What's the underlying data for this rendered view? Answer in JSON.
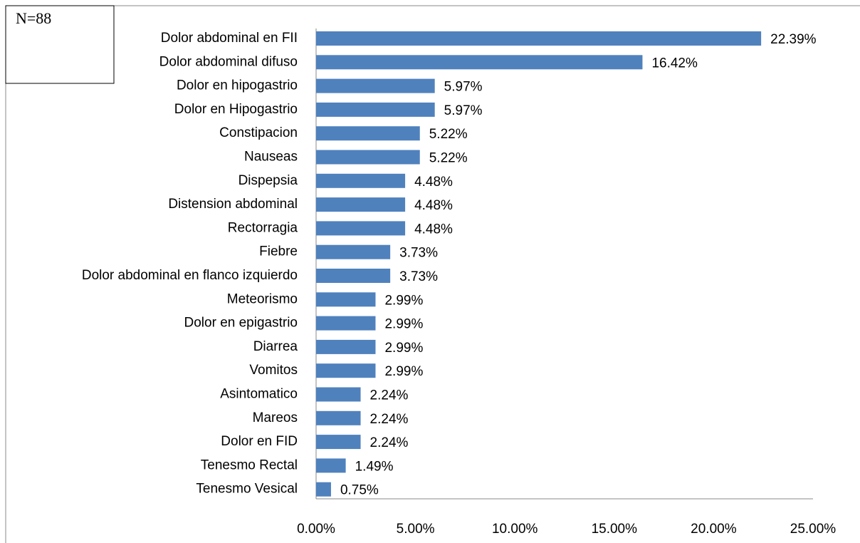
{
  "chart_data": {
    "type": "bar",
    "orientation": "horizontal",
    "annotation": "N=88",
    "categories": [
      "Dolor abdominal en FII",
      "Dolor abdominal difuso",
      "Dolor en hipogastrio",
      "Dolor en Hipogastrio",
      "Constipacion",
      "Nauseas",
      "Dispepsia",
      "Distension abdominal",
      "Rectorragia",
      "Fiebre",
      "Dolor abdominal en flanco izquierdo",
      "Meteorismo",
      "Dolor en epigastrio",
      "Diarrea",
      "Vomitos",
      "Asintomatico",
      "Mareos",
      "Dolor en FID",
      "Tenesmo Rectal",
      "Tenesmo Vesical"
    ],
    "values": [
      22.39,
      16.42,
      5.97,
      5.97,
      5.22,
      5.22,
      4.48,
      4.48,
      4.48,
      3.73,
      3.73,
      2.99,
      2.99,
      2.99,
      2.99,
      2.24,
      2.24,
      2.24,
      1.49,
      0.75
    ],
    "value_labels": [
      "22.39%",
      "16.42%",
      "5.97%",
      "5.97%",
      "5.22%",
      "5.22%",
      "4.48%",
      "4.48%",
      "4.48%",
      "3.73%",
      "3.73%",
      "2.99%",
      "2.99%",
      "2.99%",
      "2.99%",
      "2.24%",
      "2.24%",
      "2.24%",
      "1.49%",
      "0.75%"
    ],
    "color": "#4f81bd",
    "xlim": [
      0,
      25
    ],
    "xticks": [
      {
        "value": 0,
        "label": "0.00%"
      },
      {
        "value": 5,
        "label": "5.00%"
      },
      {
        "value": 10,
        "label": "10.00%"
      },
      {
        "value": 15,
        "label": "15.00%"
      },
      {
        "value": 20,
        "label": "20.00%"
      },
      {
        "value": 25,
        "label": "25.00%"
      }
    ],
    "grid": false
  }
}
